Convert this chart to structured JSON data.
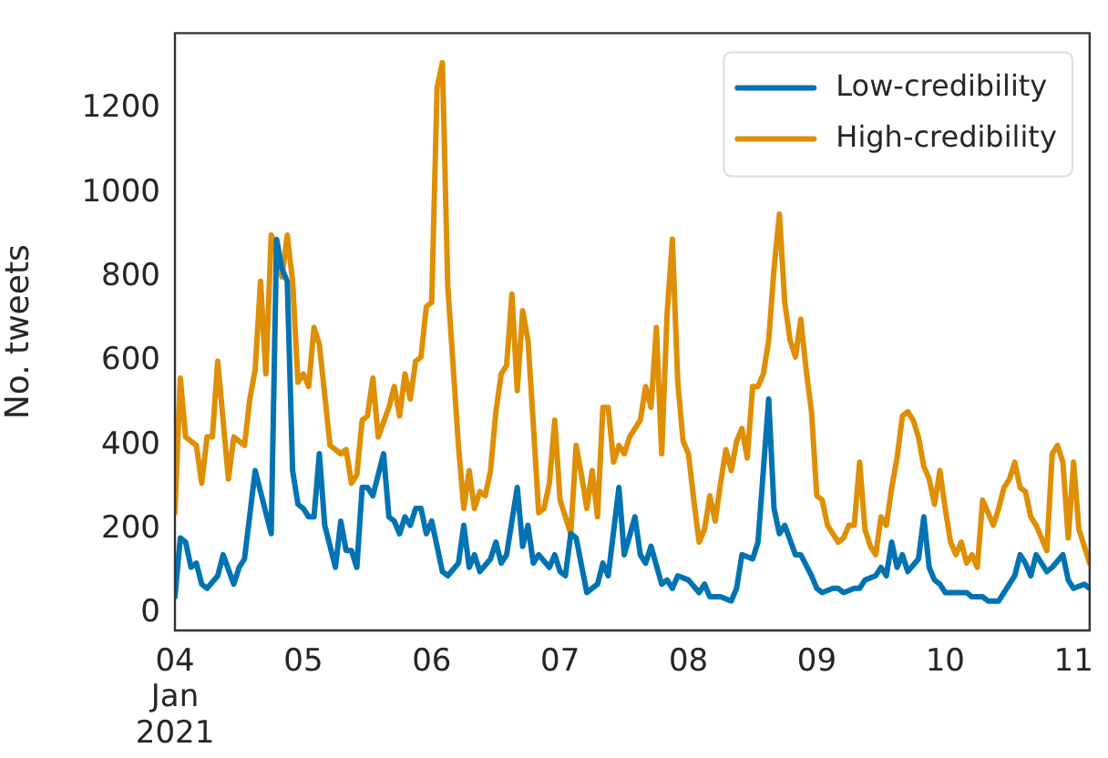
{
  "chart_data": {
    "type": "line",
    "ylabel": "No. tweets",
    "legend": "top right",
    "marker": "none",
    "xlim": [
      "2021-01-04T00:00",
      "2021-01-11T03:00"
    ],
    "xticks": [
      {
        "value": "2021-01-04",
        "label": "04\nJan\n2021"
      },
      {
        "value": "2021-01-05",
        "label": "05"
      },
      {
        "value": "2021-01-06",
        "label": "06"
      },
      {
        "value": "2021-01-07",
        "label": "07"
      },
      {
        "value": "2021-01-08",
        "label": "08"
      },
      {
        "value": "2021-01-09",
        "label": "09"
      },
      {
        "value": "2021-01-10",
        "label": "10"
      },
      {
        "value": "2021-01-11",
        "label": "11"
      }
    ],
    "ylim": [
      -40,
      1380
    ],
    "yticks": [
      0,
      200,
      400,
      600,
      800,
      1000,
      1200
    ],
    "series": [
      {
        "name": "Low-credibility",
        "color": "#0173b2",
        "x": [
          "2021-01-04T00:00",
          "2021-01-04T01:00",
          "2021-01-04T02:00",
          "2021-01-04T03:00",
          "2021-01-04T04:00",
          "2021-01-04T05:00",
          "2021-01-04T06:00",
          "2021-01-04T08:00",
          "2021-01-04T09:00",
          "2021-01-04T11:00",
          "2021-01-04T12:00",
          "2021-01-04T13:00",
          "2021-01-04T15:00",
          "2021-01-04T17:00",
          "2021-01-04T18:00",
          "2021-01-04T19:00",
          "2021-01-04T20:00",
          "2021-01-04T21:00",
          "2021-01-04T22:00",
          "2021-01-04T23:00",
          "2021-01-05T00:00",
          "2021-01-05T01:00",
          "2021-01-05T02:00",
          "2021-01-05T03:00",
          "2021-01-05T04:00",
          "2021-01-05T06:00",
          "2021-01-05T07:00",
          "2021-01-05T08:00",
          "2021-01-05T09:00",
          "2021-01-05T10:00",
          "2021-01-05T11:00",
          "2021-01-05T12:00",
          "2021-01-05T13:00",
          "2021-01-05T15:00",
          "2021-01-05T16:00",
          "2021-01-05T17:00",
          "2021-01-05T18:00",
          "2021-01-05T19:00",
          "2021-01-05T20:00",
          "2021-01-05T21:00",
          "2021-01-05T22:00",
          "2021-01-05T23:00",
          "2021-01-06T00:00",
          "2021-01-06T02:00",
          "2021-01-06T03:00",
          "2021-01-06T05:00",
          "2021-01-06T06:00",
          "2021-01-06T07:00",
          "2021-01-06T08:00",
          "2021-01-06T09:00",
          "2021-01-06T11:00",
          "2021-01-06T12:00",
          "2021-01-06T13:00",
          "2021-01-06T14:00",
          "2021-01-06T16:00",
          "2021-01-06T17:00",
          "2021-01-06T18:00",
          "2021-01-06T19:00",
          "2021-01-06T20:00",
          "2021-01-06T22:00",
          "2021-01-06T23:00",
          "2021-01-07T00:00",
          "2021-01-07T01:00",
          "2021-01-07T02:00",
          "2021-01-07T03:00",
          "2021-01-07T05:00",
          "2021-01-07T07:00",
          "2021-01-07T08:00",
          "2021-01-07T09:00",
          "2021-01-07T11:00",
          "2021-01-07T12:00",
          "2021-01-07T14:00",
          "2021-01-07T15:00",
          "2021-01-07T16:00",
          "2021-01-07T17:00",
          "2021-01-07T19:00",
          "2021-01-07T20:00",
          "2021-01-07T21:00",
          "2021-01-07T22:00",
          "2021-01-08T00:00",
          "2021-01-08T02:00",
          "2021-01-08T03:00",
          "2021-01-08T04:00",
          "2021-01-08T06:00",
          "2021-01-08T08:00",
          "2021-01-08T09:00",
          "2021-01-08T10:00",
          "2021-01-08T12:00",
          "2021-01-08T13:00",
          "2021-01-08T15:00",
          "2021-01-08T16:00",
          "2021-01-08T17:00",
          "2021-01-08T18:00",
          "2021-01-08T20:00",
          "2021-01-08T21:00",
          "2021-01-08T23:00",
          "2021-01-09T00:00",
          "2021-01-09T01:00",
          "2021-01-09T03:00",
          "2021-01-09T04:00",
          "2021-01-09T05:00",
          "2021-01-09T07:00",
          "2021-01-09T08:00",
          "2021-01-09T09:00",
          "2021-01-09T11:00",
          "2021-01-09T12:00",
          "2021-01-09T13:00",
          "2021-01-09T14:00",
          "2021-01-09T15:00",
          "2021-01-09T16:00",
          "2021-01-09T17:00",
          "2021-01-09T19:00",
          "2021-01-09T20:00",
          "2021-01-09T21:00",
          "2021-01-09T22:00",
          "2021-01-09T23:00",
          "2021-01-10T00:00",
          "2021-01-10T02:00",
          "2021-01-10T04:00",
          "2021-01-10T05:00",
          "2021-01-10T07:00",
          "2021-01-10T08:00",
          "2021-01-10T10:00",
          "2021-01-10T11:00",
          "2021-01-10T13:00",
          "2021-01-10T14:00",
          "2021-01-10T15:00",
          "2021-01-10T16:00",
          "2021-01-10T17:00",
          "2021-01-10T19:00",
          "2021-01-10T20:00",
          "2021-01-10T22:00",
          "2021-01-10T23:00",
          "2021-01-11T00:00",
          "2021-01-11T02:00",
          "2021-01-11T03:00"
        ],
        "values": [
          40,
          180,
          170,
          110,
          120,
          70,
          60,
          90,
          140,
          70,
          110,
          130,
          340,
          240,
          190,
          890,
          820,
          790,
          340,
          260,
          250,
          230,
          230,
          380,
          210,
          110,
          220,
          150,
          150,
          110,
          300,
          300,
          280,
          380,
          230,
          220,
          190,
          230,
          210,
          250,
          250,
          190,
          220,
          100,
          90,
          120,
          210,
          110,
          140,
          100,
          130,
          170,
          120,
          140,
          300,
          160,
          210,
          120,
          140,
          110,
          140,
          100,
          90,
          190,
          180,
          50,
          70,
          120,
          90,
          300,
          140,
          230,
          140,
          120,
          160,
          70,
          80,
          60,
          90,
          80,
          50,
          70,
          40,
          40,
          30,
          60,
          140,
          130,
          170,
          510,
          250,
          190,
          210,
          140,
          140,
          90,
          60,
          50,
          60,
          60,
          50,
          60,
          60,
          80,
          90,
          110,
          90,
          170,
          110,
          140,
          100,
          130,
          230,
          110,
          80,
          70,
          50,
          50,
          50,
          40,
          40,
          30,
          30,
          50,
          90,
          140,
          120,
          90,
          140,
          100,
          110,
          140,
          80,
          60,
          70,
          60
        ]
      },
      {
        "name": "High-credibility",
        "color": "#de8f05",
        "x": [
          "2021-01-04T00:00",
          "2021-01-04T01:00",
          "2021-01-04T02:00",
          "2021-01-04T04:00",
          "2021-01-04T05:00",
          "2021-01-04T06:00",
          "2021-01-04T07:00",
          "2021-01-04T08:00",
          "2021-01-04T10:00",
          "2021-01-04T11:00",
          "2021-01-04T13:00",
          "2021-01-04T14:00",
          "2021-01-04T15:00",
          "2021-01-04T16:00",
          "2021-01-04T17:00",
          "2021-01-04T18:00",
          "2021-01-04T19:00",
          "2021-01-04T20:00",
          "2021-01-04T21:00",
          "2021-01-04T22:00",
          "2021-01-04T23:00",
          "2021-01-05T00:00",
          "2021-01-05T01:00",
          "2021-01-05T02:00",
          "2021-01-05T03:00",
          "2021-01-05T05:00",
          "2021-01-05T07:00",
          "2021-01-05T08:00",
          "2021-01-05T09:00",
          "2021-01-05T10:00",
          "2021-01-05T11:00",
          "2021-01-05T12:00",
          "2021-01-05T13:00",
          "2021-01-05T14:00",
          "2021-01-05T16:00",
          "2021-01-05T17:00",
          "2021-01-05T18:00",
          "2021-01-05T19:00",
          "2021-01-05T20:00",
          "2021-01-05T21:00",
          "2021-01-05T22:00",
          "2021-01-05T23:00",
          "2021-01-06T00:00",
          "2021-01-06T01:00",
          "2021-01-06T02:00",
          "2021-01-06T03:00",
          "2021-01-06T05:00",
          "2021-01-06T06:00",
          "2021-01-06T07:00",
          "2021-01-06T08:00",
          "2021-01-06T09:00",
          "2021-01-06T10:00",
          "2021-01-06T11:00",
          "2021-01-06T12:00",
          "2021-01-06T13:00",
          "2021-01-06T14:00",
          "2021-01-06T15:00",
          "2021-01-06T16:00",
          "2021-01-06T17:00",
          "2021-01-06T18:00",
          "2021-01-06T19:00",
          "2021-01-06T20:00",
          "2021-01-06T21:00",
          "2021-01-06T22:00",
          "2021-01-06T23:00",
          "2021-01-07T00:00",
          "2021-01-07T01:00",
          "2021-01-07T02:00",
          "2021-01-07T03:00",
          "2021-01-07T04:00",
          "2021-01-07T05:00",
          "2021-01-07T06:00",
          "2021-01-07T07:00",
          "2021-01-07T08:00",
          "2021-01-07T09:00",
          "2021-01-07T10:00",
          "2021-01-07T11:00",
          "2021-01-07T12:00",
          "2021-01-07T13:00",
          "2021-01-07T15:00",
          "2021-01-07T16:00",
          "2021-01-07T17:00",
          "2021-01-07T18:00",
          "2021-01-07T19:00",
          "2021-01-07T20:00",
          "2021-01-07T21:00",
          "2021-01-07T22:00",
          "2021-01-07T23:00",
          "2021-01-08T00:00",
          "2021-01-08T01:00",
          "2021-01-08T02:00",
          "2021-01-08T03:00",
          "2021-01-08T04:00",
          "2021-01-08T05:00",
          "2021-01-08T06:00",
          "2021-01-08T07:00",
          "2021-01-08T08:00",
          "2021-01-08T09:00",
          "2021-01-08T10:00",
          "2021-01-08T11:00",
          "2021-01-08T12:00",
          "2021-01-08T13:00",
          "2021-01-08T14:00",
          "2021-01-08T15:00",
          "2021-01-08T16:00",
          "2021-01-08T17:00",
          "2021-01-08T18:00",
          "2021-01-08T19:00",
          "2021-01-08T20:00",
          "2021-01-08T21:00",
          "2021-01-08T22:00",
          "2021-01-08T23:00",
          "2021-01-09T00:00",
          "2021-01-09T01:00",
          "2021-01-09T02:00",
          "2021-01-09T04:00",
          "2021-01-09T05:00",
          "2021-01-09T06:00",
          "2021-01-09T07:00",
          "2021-01-09T08:00",
          "2021-01-09T09:00",
          "2021-01-09T10:00",
          "2021-01-09T11:00",
          "2021-01-09T12:00",
          "2021-01-09T13:00",
          "2021-01-09T14:00",
          "2021-01-09T15:00",
          "2021-01-09T16:00",
          "2021-01-09T17:00",
          "2021-01-09T18:00",
          "2021-01-09T19:00",
          "2021-01-09T20:00",
          "2021-01-09T21:00",
          "2021-01-09T22:00",
          "2021-01-09T23:00",
          "2021-01-10T00:00",
          "2021-01-10T01:00",
          "2021-01-10T02:00",
          "2021-01-10T03:00",
          "2021-01-10T04:00",
          "2021-01-10T05:00",
          "2021-01-10T06:00",
          "2021-01-10T07:00",
          "2021-01-10T09:00",
          "2021-01-10T10:00",
          "2021-01-10T11:00",
          "2021-01-10T12:00",
          "2021-01-10T13:00",
          "2021-01-10T14:00",
          "2021-01-10T15:00",
          "2021-01-10T16:00",
          "2021-01-10T17:00",
          "2021-01-10T19:00",
          "2021-01-10T20:00",
          "2021-01-10T21:00",
          "2021-01-10T22:00",
          "2021-01-10T23:00",
          "2021-01-11T00:00",
          "2021-01-11T01:00",
          "2021-01-11T03:00"
        ],
        "values": [
          240,
          560,
          420,
          400,
          310,
          420,
          420,
          600,
          320,
          420,
          400,
          510,
          580,
          790,
          570,
          900,
          860,
          800,
          900,
          790,
          550,
          570,
          540,
          680,
          640,
          400,
          380,
          390,
          310,
          330,
          460,
          470,
          560,
          420,
          490,
          540,
          470,
          570,
          510,
          600,
          610,
          730,
          740,
          1250,
          1310,
          780,
          400,
          250,
          340,
          250,
          290,
          280,
          340,
          480,
          570,
          590,
          760,
          530,
          720,
          650,
          450,
          240,
          250,
          310,
          460,
          270,
          230,
          190,
          400,
          330,
          250,
          340,
          230,
          490,
          490,
          360,
          400,
          380,
          420,
          460,
          540,
          490,
          680,
          380,
          710,
          890,
          550,
          410,
          380,
          270,
          170,
          200,
          280,
          220,
          310,
          390,
          340,
          410,
          440,
          370,
          540,
          540,
          570,
          650,
          820,
          950,
          740,
          650,
          610,
          700,
          580,
          480,
          280,
          270,
          210,
          170,
          180,
          210,
          210,
          360,
          200,
          160,
          140,
          230,
          210,
          300,
          370,
          470,
          480,
          460,
          420,
          350,
          320,
          260,
          340,
          250,
          170,
          140,
          170,
          120,
          140,
          110,
          270,
          210,
          250,
          300,
          320,
          360,
          300,
          290,
          230,
          210,
          150,
          380,
          400,
          360,
          180,
          360,
          200,
          120
        ]
      }
    ]
  }
}
